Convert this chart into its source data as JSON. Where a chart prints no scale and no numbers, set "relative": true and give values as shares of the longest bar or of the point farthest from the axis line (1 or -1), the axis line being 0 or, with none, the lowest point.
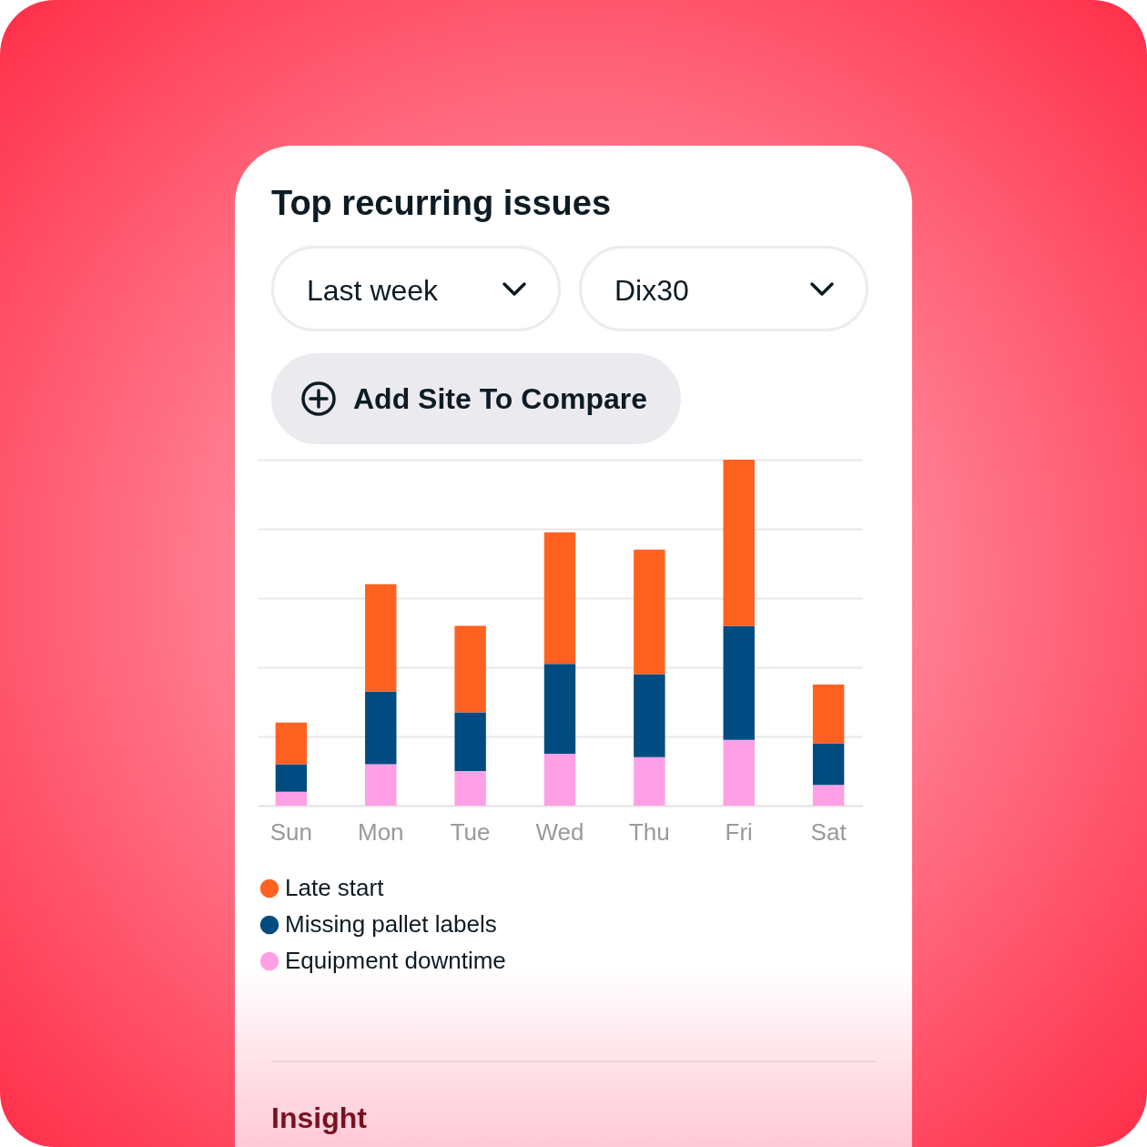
{
  "chart_data": {
    "type": "bar",
    "title": "Top recurring issues",
    "stacked": true,
    "relative": true,
    "grid": "y",
    "legend": "bottom left",
    "categories": [
      "Sun",
      "Mon",
      "Tue",
      "Wed",
      "Thu",
      "Fri",
      "Sat"
    ],
    "series": [
      {
        "name": "Equipment downtime",
        "color": "#ff9fe5",
        "values": [
          0.04,
          0.12,
          0.1,
          0.15,
          0.14,
          0.19,
          0.06
        ]
      },
      {
        "name": "Missing pallet labels",
        "color": "#004c80",
        "values": [
          0.08,
          0.21,
          0.17,
          0.26,
          0.24,
          0.33,
          0.12
        ]
      },
      {
        "name": "Late start",
        "color": "#ff6121",
        "values": [
          0.12,
          0.31,
          0.25,
          0.38,
          0.36,
          0.48,
          0.17
        ]
      }
    ],
    "annotations": [
      "Last week",
      "Dix30",
      "Add Site To Compare",
      "Insight"
    ]
  }
}
